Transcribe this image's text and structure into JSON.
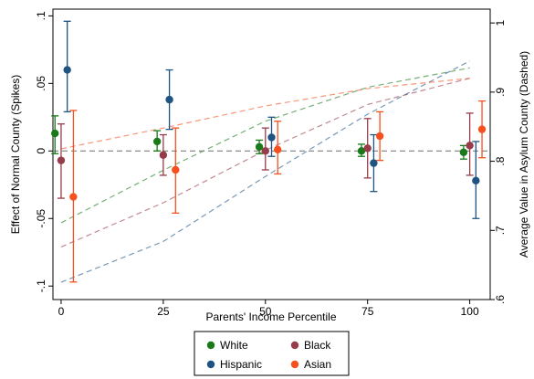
{
  "chart_data": {
    "type": "scatter",
    "title": "",
    "xlabel": "Parents' Income Percentile",
    "ylabel_left": "Effect of Normal County (Spikes)",
    "ylabel_right": "Average Value in Asylum County (Dashed)",
    "x_ticks": [
      0,
      25,
      50,
      75,
      100
    ],
    "x_tick_labels": [
      "0",
      "25",
      "50",
      "75",
      "100"
    ],
    "xlim": [
      -2,
      105
    ],
    "ylim_left": [
      -0.11,
      0.105
    ],
    "ylim_right": [
      0.6,
      1.02
    ],
    "left_ticks": [
      0.1,
      0.05,
      0,
      -0.05,
      -0.1
    ],
    "left_tick_labels": [
      ".1",
      ".05",
      "0",
      "-.05",
      "-.1"
    ],
    "right_ticks": [
      1,
      0.9,
      0.8,
      0.7,
      0.6
    ],
    "right_tick_labels": [
      "1",
      ".9",
      ".8",
      ".7",
      ".6"
    ],
    "grid": false,
    "legend_position": "bottom",
    "zero_line": 0,
    "series": [
      {
        "name": "White",
        "color": "#1a7a1a",
        "offset": -1.5,
        "points": [
          {
            "x": 0,
            "y": 0.013,
            "ci_low": -0.002,
            "ci_high": 0.026
          },
          {
            "x": 25,
            "y": 0.007,
            "ci_low": 0.0,
            "ci_high": 0.015
          },
          {
            "x": 50,
            "y": 0.003,
            "ci_low": -0.002,
            "ci_high": 0.008
          },
          {
            "x": 75,
            "y": 0.0,
            "ci_low": -0.004,
            "ci_high": 0.005
          },
          {
            "x": 100,
            "y": -0.001,
            "ci_low": -0.006,
            "ci_high": 0.004
          }
        ],
        "dashed_x": [
          0,
          25,
          50,
          75,
          100
        ],
        "dashed_y": [
          0.711,
          0.787,
          0.858,
          0.907,
          0.935
        ]
      },
      {
        "name": "Black",
        "color": "#963c4a",
        "offset": 0,
        "points": [
          {
            "x": 0,
            "y": -0.007,
            "ci_low": -0.035,
            "ci_high": 0.02
          },
          {
            "x": 25,
            "y": -0.003,
            "ci_low": -0.018,
            "ci_high": 0.012
          },
          {
            "x": 50,
            "y": 0.0,
            "ci_low": -0.014,
            "ci_high": 0.017
          },
          {
            "x": 75,
            "y": 0.002,
            "ci_low": -0.02,
            "ci_high": 0.024
          },
          {
            "x": 100,
            "y": 0.004,
            "ci_low": -0.018,
            "ci_high": 0.028
          }
        ],
        "dashed_x": [
          0,
          25,
          50,
          75,
          100
        ],
        "dashed_y": [
          0.676,
          0.74,
          0.816,
          0.882,
          0.92
        ]
      },
      {
        "name": "Hispanic",
        "color": "#1e5382",
        "offset": 1.5,
        "points": [
          {
            "x": 0,
            "y": 0.06,
            "ci_low": 0.029,
            "ci_high": 0.096
          },
          {
            "x": 25,
            "y": 0.038,
            "ci_low": 0.016,
            "ci_high": 0.06
          },
          {
            "x": 50,
            "y": 0.01,
            "ci_low": -0.004,
            "ci_high": 0.025
          },
          {
            "x": 75,
            "y": -0.009,
            "ci_low": -0.03,
            "ci_high": 0.012
          },
          {
            "x": 100,
            "y": -0.022,
            "ci_low": -0.05,
            "ci_high": 0.007
          }
        ],
        "dashed_x": [
          0,
          25,
          50,
          75,
          100
        ],
        "dashed_y": [
          0.625,
          0.684,
          0.778,
          0.868,
          0.945
        ]
      },
      {
        "name": "Asian",
        "color": "#f5501e",
        "offset": 3,
        "points": [
          {
            "x": 0,
            "y": -0.034,
            "ci_low": -0.097,
            "ci_high": 0.03
          },
          {
            "x": 25,
            "y": -0.014,
            "ci_low": -0.046,
            "ci_high": 0.017
          },
          {
            "x": 50,
            "y": 0.001,
            "ci_low": -0.017,
            "ci_high": 0.022
          },
          {
            "x": 75,
            "y": 0.011,
            "ci_low": -0.007,
            "ci_high": 0.029
          },
          {
            "x": 100,
            "y": 0.016,
            "ci_low": -0.005,
            "ci_high": 0.037
          }
        ],
        "dashed_x": [
          0,
          25,
          50,
          75,
          100
        ],
        "dashed_y": [
          0.818,
          0.848,
          0.88,
          0.905,
          0.92
        ]
      }
    ],
    "legend": [
      {
        "label": "White",
        "color": "#1a7a1a"
      },
      {
        "label": "Black",
        "color": "#963c4a"
      },
      {
        "label": "Hispanic",
        "color": "#1e5382"
      },
      {
        "label": "Asian",
        "color": "#f5501e"
      }
    ]
  }
}
